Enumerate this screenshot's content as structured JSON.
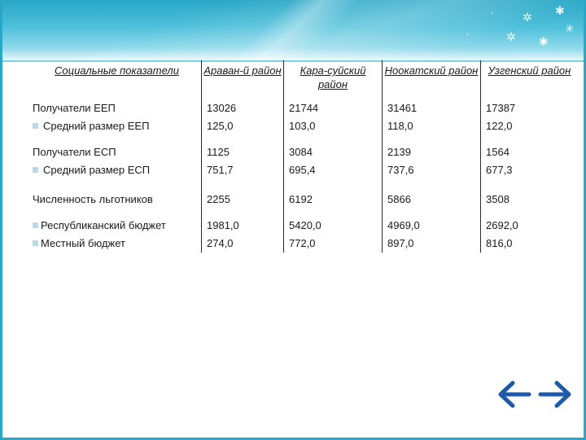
{
  "table": {
    "headers": [
      "Социальные показатели",
      "Араван-й район",
      "Кара-суйский район",
      "Ноокатский район",
      "Узгенский район"
    ],
    "rows": [
      {
        "labels": [
          "Получатели ЕЕП",
          "Средний размер ЕЕП"
        ],
        "values": [
          [
            "13026",
            "125,0"
          ],
          [
            "21744",
            "103,0"
          ],
          [
            "31461",
            "118,0"
          ],
          [
            "17387",
            "122,0"
          ]
        ]
      },
      {
        "labels": [
          "Получатели ЕСП",
          "Средний размер ЕСП"
        ],
        "values": [
          [
            "1125",
            "751,7"
          ],
          [
            "3084",
            "695,4"
          ],
          [
            "2139",
            "737,6"
          ],
          [
            "1564",
            "677,3"
          ]
        ]
      },
      {
        "labels": [
          "Численность льготников"
        ],
        "values": [
          [
            "2255"
          ],
          [
            "6192"
          ],
          [
            "5866"
          ],
          [
            "3508"
          ]
        ]
      },
      {
        "labels": [
          "Республиканский бюджет",
          "Местный бюджет"
        ],
        "values": [
          [
            "1981,0",
            "274,0"
          ],
          [
            "5420,0",
            "772,0"
          ],
          [
            "4969,0",
            "897,0"
          ],
          [
            "2692,0",
            "816,0"
          ]
        ]
      }
    ]
  },
  "colors": {
    "header_band": "#2aa7c7",
    "bullet": "#b9d9e6",
    "nav_arrow": "#1f5aa8"
  },
  "icons": {
    "nav": "left-right-arrow-icon"
  }
}
